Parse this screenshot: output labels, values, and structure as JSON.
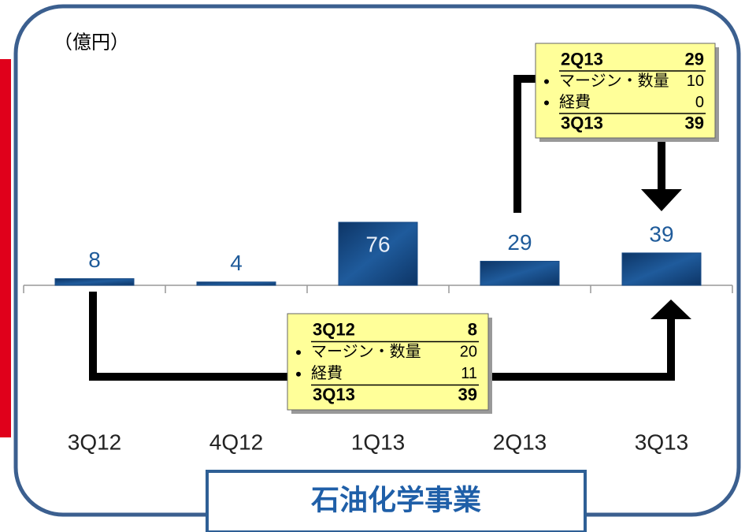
{
  "chart_data": {
    "type": "bar",
    "title": "石油化学事業",
    "unit_label": "（億円）",
    "categories": [
      "3Q12",
      "4Q12",
      "1Q13",
      "2Q13",
      "3Q13"
    ],
    "values": [
      8,
      4,
      76,
      29,
      39
    ],
    "color": "#174a85",
    "callouts": [
      {
        "rows": [
          {
            "label": "3Q12",
            "value": 8
          },
          {
            "label": "マージン・数量",
            "value": 20
          },
          {
            "label": "経費",
            "value": 11
          },
          {
            "label": "3Q13",
            "value": 39
          }
        ]
      },
      {
        "rows": [
          {
            "label": "2Q13",
            "value": 29
          },
          {
            "label": "マージン・数量",
            "value": 10
          },
          {
            "label": "経費",
            "value": 0
          },
          {
            "label": "3Q13",
            "value": 39
          }
        ]
      }
    ]
  }
}
